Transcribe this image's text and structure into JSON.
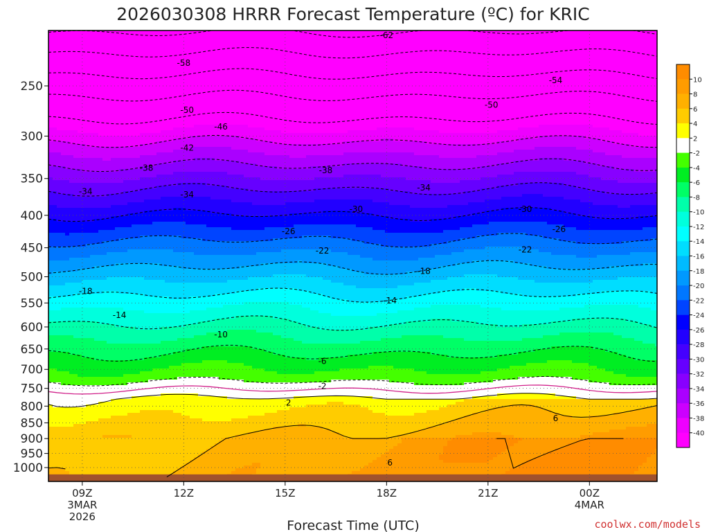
{
  "chart_data": {
    "type": "heatmap",
    "title": "2026030308 HRRR Forecast Temperature (ºC) for KRIC",
    "xlabel": "Forecast Time (UTC)",
    "ylabel": "",
    "y_scale": "log-pressure",
    "ylim": [
      1040,
      200
    ],
    "y_ticks": [
      250,
      300,
      350,
      400,
      450,
      500,
      550,
      600,
      650,
      700,
      750,
      800,
      850,
      900,
      950,
      1000
    ],
    "x_hours": [
      8,
      26
    ],
    "x_ticks": [
      {
        "hour": 9,
        "lines": [
          "09Z",
          "3MAR",
          "2026"
        ]
      },
      {
        "hour": 12,
        "lines": [
          "12Z"
        ]
      },
      {
        "hour": 15,
        "lines": [
          "15Z"
        ]
      },
      {
        "hour": 18,
        "lines": [
          "18Z"
        ]
      },
      {
        "hour": 21,
        "lines": [
          "21Z"
        ]
      },
      {
        "hour": 24,
        "lines": [
          "00Z",
          "4MAR"
        ]
      }
    ],
    "colorbar": {
      "labels": [
        "10",
        "8",
        "6",
        "4",
        "2",
        "-2",
        "-4",
        "-6",
        "-8",
        "-10",
        "-12",
        "-14",
        "-16",
        "-18",
        "-20",
        "-22",
        "-24",
        "-26",
        "-28",
        "-30",
        "-32",
        "-34",
        "-36",
        "-38",
        "-40"
      ],
      "bins": [
        {
          "lo": 10,
          "hi": 12,
          "color": "#ff8c00"
        },
        {
          "lo": 8,
          "hi": 10,
          "color": "#ff9c00"
        },
        {
          "lo": 6,
          "hi": 8,
          "color": "#ffb000"
        },
        {
          "lo": 4,
          "hi": 6,
          "color": "#ffcc00"
        },
        {
          "lo": 2,
          "hi": 4,
          "color": "#ffff00"
        },
        {
          "lo": -2,
          "hi": 2,
          "color": "#ffffff"
        },
        {
          "lo": -4,
          "hi": -2,
          "color": "#44ff00"
        },
        {
          "lo": -6,
          "hi": -4,
          "color": "#00ee22"
        },
        {
          "lo": -8,
          "hi": -6,
          "color": "#00ff66"
        },
        {
          "lo": -10,
          "hi": -8,
          "color": "#00ffaa"
        },
        {
          "lo": -12,
          "hi": -10,
          "color": "#00ffdd"
        },
        {
          "lo": -14,
          "hi": -12,
          "color": "#00ffff"
        },
        {
          "lo": -16,
          "hi": -14,
          "color": "#00ddff"
        },
        {
          "lo": -18,
          "hi": -16,
          "color": "#00bbff"
        },
        {
          "lo": -20,
          "hi": -18,
          "color": "#0099ff"
        },
        {
          "lo": -22,
          "hi": -20,
          "color": "#0077ff"
        },
        {
          "lo": -24,
          "hi": -22,
          "color": "#0044ff"
        },
        {
          "lo": -26,
          "hi": -24,
          "color": "#0000ff"
        },
        {
          "lo": -28,
          "hi": -26,
          "color": "#2200ff"
        },
        {
          "lo": -30,
          "hi": -28,
          "color": "#4400ff"
        },
        {
          "lo": -32,
          "hi": -30,
          "color": "#6600ff"
        },
        {
          "lo": -34,
          "hi": -32,
          "color": "#8800ff"
        },
        {
          "lo": -36,
          "hi": -34,
          "color": "#aa00ff"
        },
        {
          "lo": -38,
          "hi": -36,
          "color": "#cc00ff"
        },
        {
          "lo": -40,
          "hi": -38,
          "color": "#ee00ff"
        },
        {
          "lo": -99,
          "hi": -40,
          "color": "#ff00ff"
        }
      ]
    },
    "contour_labels": [
      {
        "text": "-62",
        "hour": 18.0,
        "p": 208
      },
      {
        "text": "-58",
        "hour": 12.0,
        "p": 230
      },
      {
        "text": "-54",
        "hour": 23.0,
        "p": 245
      },
      {
        "text": "-50",
        "hour": 12.1,
        "p": 273
      },
      {
        "text": "-50",
        "hour": 21.1,
        "p": 268
      },
      {
        "text": "-46",
        "hour": 13.1,
        "p": 290
      },
      {
        "text": "-42",
        "hour": 12.1,
        "p": 313
      },
      {
        "text": "-38",
        "hour": 10.9,
        "p": 337
      },
      {
        "text": "-38",
        "hour": 16.2,
        "p": 340
      },
      {
        "text": "-34",
        "hour": 9.1,
        "p": 367
      },
      {
        "text": "-34",
        "hour": 12.1,
        "p": 371
      },
      {
        "text": "-34",
        "hour": 19.1,
        "p": 362
      },
      {
        "text": "-30",
        "hour": 17.1,
        "p": 391
      },
      {
        "text": "-30",
        "hour": 22.1,
        "p": 391
      },
      {
        "text": "-26",
        "hour": 15.1,
        "p": 424
      },
      {
        "text": "-26",
        "hour": 23.1,
        "p": 421
      },
      {
        "text": "-22",
        "hour": 16.1,
        "p": 455
      },
      {
        "text": "-22",
        "hour": 22.1,
        "p": 453
      },
      {
        "text": "-18",
        "hour": 9.1,
        "p": 527
      },
      {
        "text": "-18",
        "hour": 19.1,
        "p": 490
      },
      {
        "text": "-14",
        "hour": 10.1,
        "p": 575
      },
      {
        "text": "-14",
        "hour": 18.1,
        "p": 545
      },
      {
        "text": "-10",
        "hour": 13.1,
        "p": 617
      },
      {
        "text": "-6",
        "hour": 16.1,
        "p": 680
      },
      {
        "text": "-2",
        "hour": 16.1,
        "p": 744
      },
      {
        "text": "2",
        "hour": 15.1,
        "p": 790
      },
      {
        "text": "6",
        "hour": 23.0,
        "p": 836
      },
      {
        "text": "6",
        "hour": 18.1,
        "p": 982
      }
    ]
  },
  "credit": "coolwx.com/models"
}
